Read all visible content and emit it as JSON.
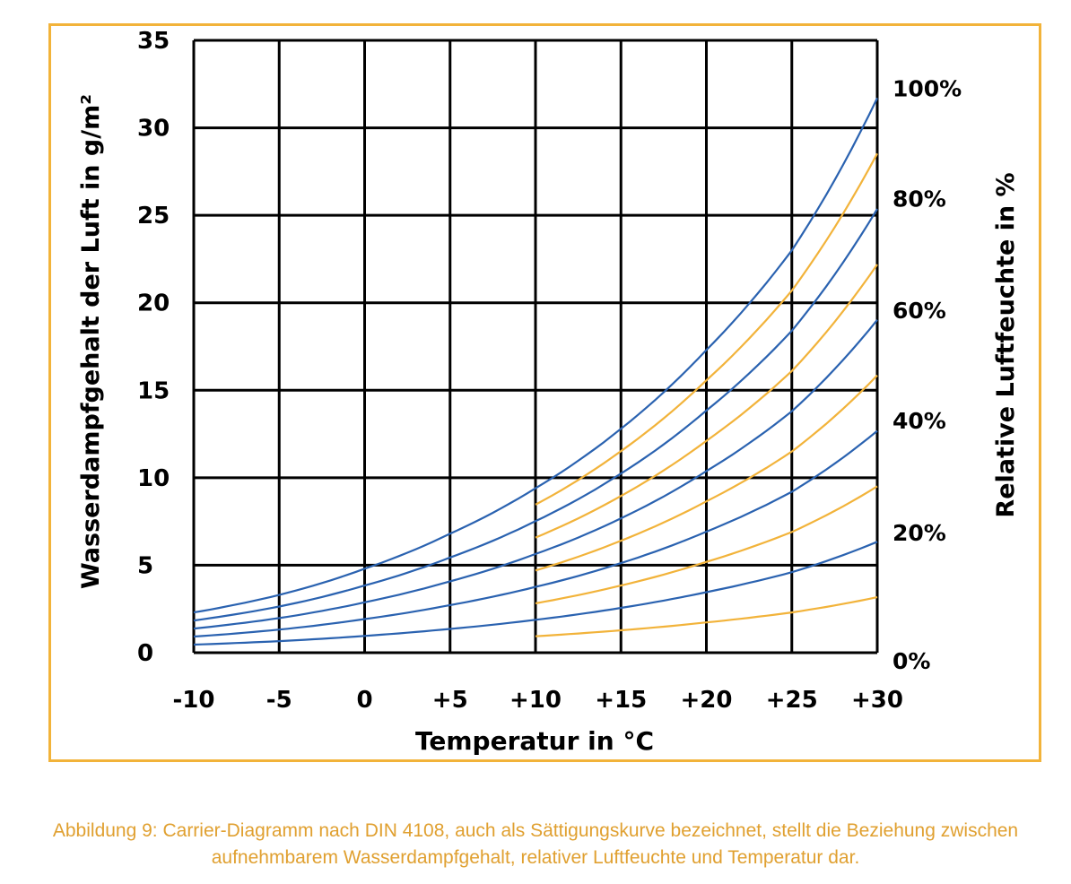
{
  "chart_data": {
    "type": "line",
    "title": "",
    "xlabel": "Temperatur in °C",
    "ylabel": "Wasserdampfgehalt der Luft in g/m²",
    "y2label": "Relative Luftfeuchte in %",
    "xlim": [
      -10,
      30
    ],
    "ylim": [
      0,
      35
    ],
    "x_ticks": [
      -10,
      -5,
      0,
      5,
      10,
      15,
      20,
      25,
      30
    ],
    "x_tick_labels": [
      "-10",
      "-5",
      "0",
      "+5",
      "+10",
      "+15",
      "+20",
      "+25",
      "+30"
    ],
    "y_ticks": [
      0,
      5,
      10,
      15,
      20,
      25,
      30,
      35
    ],
    "y_tick_labels": [
      "0",
      "5",
      "10",
      "15",
      "20",
      "25",
      "30",
      "35"
    ],
    "y2_tick_labels": [
      {
        "label": "100%",
        "y": 31.7
      },
      {
        "label": "80%",
        "y": 25.4
      },
      {
        "label": "60%",
        "y": 19.0
      },
      {
        "label": "40%",
        "y": 12.7
      },
      {
        "label": "20%",
        "y": 6.3
      },
      {
        "label": "0%",
        "y": 0
      }
    ],
    "grid": true,
    "saturation_humidity_g_m3": {
      "x": [
        -10,
        -5,
        0,
        5,
        10,
        15,
        20,
        25,
        30
      ],
      "values": [
        2.3,
        3.3,
        4.8,
        6.8,
        9.4,
        12.8,
        17.3,
        23.0,
        31.7
      ]
    },
    "series": [
      {
        "name": "100%",
        "rh": 1.0,
        "x_start": -10,
        "color": "#2a62b0"
      },
      {
        "name": "80%",
        "rh": 0.8,
        "x_start": -10,
        "color": "#2a62b0"
      },
      {
        "name": "60%",
        "rh": 0.6,
        "x_start": -10,
        "color": "#2a62b0"
      },
      {
        "name": "40%",
        "rh": 0.4,
        "x_start": -10,
        "color": "#2a62b0"
      },
      {
        "name": "20%",
        "rh": 0.2,
        "x_start": -10,
        "color": "#2a62b0"
      },
      {
        "rh": 0.9,
        "x_start": 10,
        "color": "#f2b33a"
      },
      {
        "rh": 0.7,
        "x_start": 10,
        "color": "#f2b33a"
      },
      {
        "rh": 0.5,
        "x_start": 10,
        "color": "#f2b33a"
      },
      {
        "rh": 0.3,
        "x_start": 10,
        "color": "#f2b33a"
      },
      {
        "rh": 0.1,
        "x_start": 10,
        "color": "#f2b33a"
      }
    ]
  },
  "caption": "Abbildung 9: Carrier-Diagramm nach DIN 4108, auch als Sättigungskurve bezeichnet, stellt die Beziehung zwischen aufnehmbarem Wasserdampfgehalt, relativer Luftfeuchte und Temperatur dar.",
  "colors": {
    "frame": "#f2b33a",
    "blue_curve": "#2a62b0",
    "orange_curve": "#f2b33a",
    "grid": "#000000",
    "caption": "#e0a030"
  }
}
